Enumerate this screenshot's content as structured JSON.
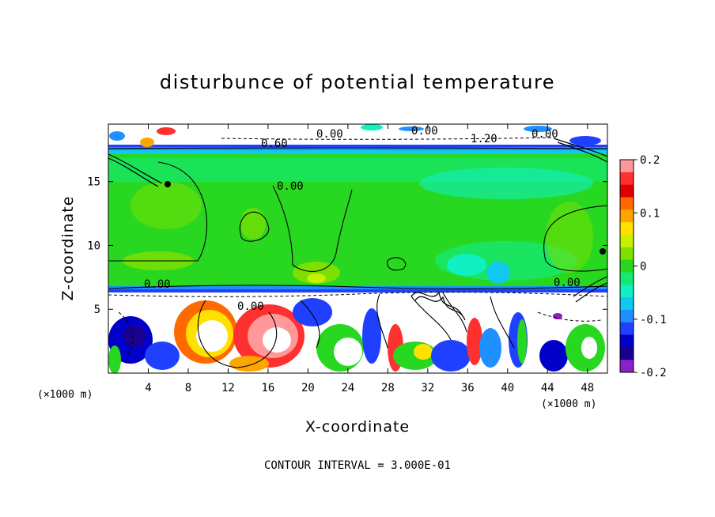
{
  "chart_data": {
    "type": "heatmap",
    "title": "disturbunce of potential temperature",
    "xlabel": "X-coordinate",
    "ylabel": "Z-coordinate",
    "x_unit": "(×1000 m)",
    "y_unit": "(×1000 m)",
    "xlim": [
      0,
      50
    ],
    "ylim": [
      0,
      19.5
    ],
    "x_ticks": [
      4,
      8,
      12,
      16,
      20,
      24,
      28,
      32,
      36,
      40,
      44,
      48
    ],
    "y_ticks": [
      5,
      10,
      15
    ],
    "colorbar": {
      "range": [
        -0.2,
        0.2
      ],
      "ticks": [
        "0.2",
        "0.1",
        "0",
        "-0.1",
        "-0.2"
      ],
      "colors": [
        "#ff9999",
        "#ff3030",
        "#e00000",
        "#ff6a00",
        "#ffa500",
        "#ffe000",
        "#c8f000",
        "#7ee000",
        "#28d820",
        "#16e870",
        "#10f0c0",
        "#10c8f0",
        "#1e90ff",
        "#2040ff",
        "#0000c8",
        "#1a0090",
        "#8a20c8"
      ]
    },
    "contour_labels": [
      "0.00",
      "0.00",
      "0.00",
      "0.00",
      "0.60",
      "0.00",
      "1.20",
      "0.00",
      "0.00"
    ],
    "regions": [
      {
        "z_range": [
          0,
          6.5
        ],
        "value": "mixed, -0.2 to 0.2"
      },
      {
        "z_range": [
          6.5,
          17.5
        ],
        "value": "approx 0 to 0.02"
      },
      {
        "z_range": [
          17.5,
          19.5
        ],
        "value": "mixed, -0.2 to 0.2"
      }
    ],
    "grid": false
  },
  "footer": "CONTOUR INTERVAL = 3.000E-01"
}
